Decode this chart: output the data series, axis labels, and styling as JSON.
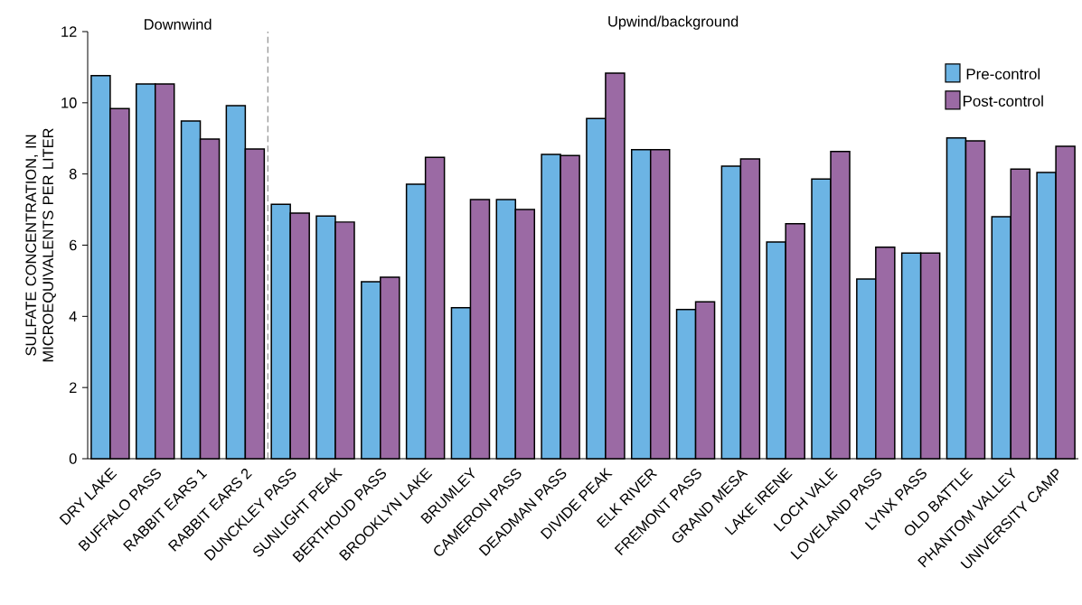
{
  "chart_data": {
    "type": "bar",
    "ylabel": "SULFATE CONCENTRATION, IN MICROEQUIVALENTS PER LITER",
    "categories": [
      "DRY LAKE",
      "BUFFALO PASS",
      "RABBIT EARS 1",
      "RABBIT EARS 2",
      "DUNCKLEY PASS",
      "SUNLIGHT PEAK",
      "BERTHOUD PASS",
      "BROOKLYN LAKE",
      "BRUMLEY",
      "CAMERON PASS",
      "DEADMAN PASS",
      "DIVIDE PEAK",
      "ELK RIVER",
      "FREMONT PASS",
      "GRAND MESA",
      "LAKE IRENE",
      "LOCH VALE",
      "LOVELAND PASS",
      "LYNX PASS",
      "OLD BATTLE",
      "PHANTOM VALLEY",
      "UNIVERSITY CAMP"
    ],
    "series": [
      {
        "name": "Pre-control",
        "color": "#6cb4e4",
        "values": [
          10.76,
          10.53,
          9.49,
          9.92,
          7.15,
          6.82,
          4.97,
          7.71,
          4.24,
          7.28,
          8.55,
          9.56,
          8.68,
          4.19,
          8.22,
          6.09,
          7.86,
          5.05,
          5.78,
          9.01,
          6.8,
          8.04
        ]
      },
      {
        "name": "Post-control",
        "color": "#9b6aa4",
        "values": [
          9.84,
          10.53,
          8.98,
          8.7,
          6.9,
          6.65,
          5.1,
          8.47,
          7.28,
          7.0,
          8.52,
          10.83,
          8.68,
          4.41,
          8.42,
          6.6,
          8.63,
          5.94,
          5.78,
          8.93,
          8.14,
          8.78
        ]
      }
    ],
    "ylim": [
      0,
      12
    ],
    "yticks": [
      0,
      2,
      4,
      6,
      8,
      10,
      12
    ],
    "annotations": [
      "Downwind",
      "Upwind/background"
    ],
    "legend": "top right"
  }
}
